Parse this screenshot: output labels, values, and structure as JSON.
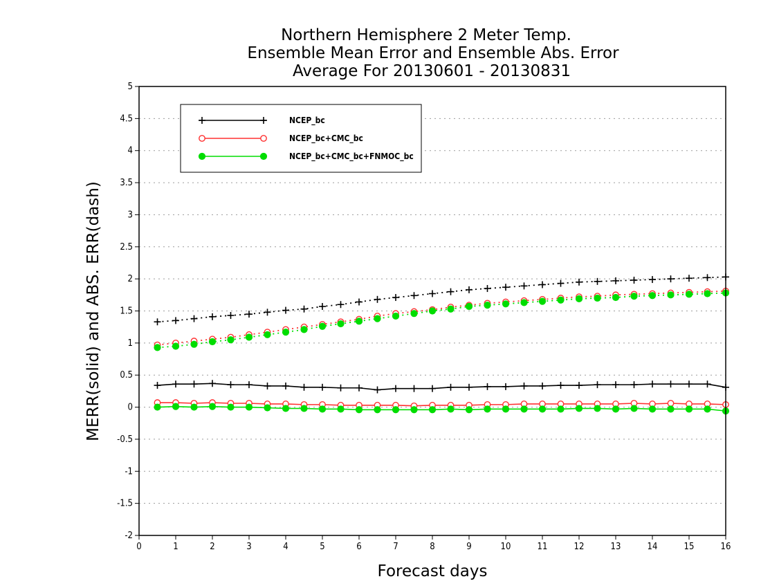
{
  "chart_data": {
    "type": "line",
    "title_lines": [
      "Northern Hemisphere 2 Meter Temp.",
      "Ensemble Mean Error and Ensemble Abs. Error",
      "Average For 20130601 - 20130831"
    ],
    "xlabel": "Forecast days",
    "ylabel": "MERR(solid) and ABS. ERR(dash)",
    "xlim": [
      0,
      16
    ],
    "ylim": [
      -2,
      5
    ],
    "x_ticks": [
      "0",
      "1",
      "2",
      "3",
      "4",
      "5",
      "6",
      "7",
      "8",
      "9",
      "10",
      "11",
      "12",
      "13",
      "14",
      "15",
      "16"
    ],
    "y_ticks": [
      "5",
      "4.5",
      "4",
      "3.5",
      "3",
      "2.5",
      "2",
      "1.5",
      "1",
      "0.5",
      "0",
      "-0.5",
      "-1",
      "-1.5",
      "-2"
    ],
    "y_tick_values": [
      5,
      4.5,
      4,
      3.5,
      3,
      2.5,
      2,
      1.5,
      1,
      0.5,
      0,
      -0.5,
      -1,
      -1.5,
      -2
    ],
    "grid": "horizontal dotted",
    "legend_position": "top-left",
    "x": [
      0.5,
      1,
      1.5,
      2,
      2.5,
      3,
      3.5,
      4,
      4.5,
      5,
      5.5,
      6,
      6.5,
      7,
      7.5,
      8,
      8.5,
      9,
      9.5,
      10,
      10.5,
      11,
      11.5,
      12,
      12.5,
      13,
      13.5,
      14,
      14.5,
      15,
      15.5,
      16
    ],
    "series": [
      {
        "name": "NCEP_bc",
        "color": "#000000",
        "marker": "plus",
        "merr": [
          0.34,
          0.36,
          0.36,
          0.37,
          0.35,
          0.35,
          0.33,
          0.33,
          0.31,
          0.31,
          0.3,
          0.3,
          0.27,
          0.29,
          0.29,
          0.29,
          0.31,
          0.31,
          0.32,
          0.32,
          0.33,
          0.33,
          0.34,
          0.34,
          0.35,
          0.35,
          0.35,
          0.36,
          0.36,
          0.36,
          0.36,
          0.31
        ],
        "abs_err": [
          1.33,
          1.35,
          1.38,
          1.41,
          1.43,
          1.45,
          1.48,
          1.51,
          1.53,
          1.57,
          1.6,
          1.64,
          1.68,
          1.71,
          1.74,
          1.77,
          1.8,
          1.83,
          1.85,
          1.87,
          1.89,
          1.91,
          1.93,
          1.95,
          1.96,
          1.97,
          1.98,
          1.99,
          2.0,
          2.01,
          2.02,
          2.03
        ]
      },
      {
        "name": "NCEP_bc+CMC_bc",
        "color": "#ff3030",
        "marker": "open-circle",
        "merr": [
          0.07,
          0.07,
          0.06,
          0.07,
          0.06,
          0.06,
          0.05,
          0.05,
          0.04,
          0.04,
          0.03,
          0.03,
          0.03,
          0.03,
          0.02,
          0.03,
          0.03,
          0.03,
          0.04,
          0.04,
          0.05,
          0.05,
          0.05,
          0.05,
          0.05,
          0.05,
          0.06,
          0.05,
          0.06,
          0.05,
          0.05,
          0.04
        ],
        "abs_err": [
          0.97,
          1.0,
          1.03,
          1.06,
          1.09,
          1.13,
          1.17,
          1.21,
          1.25,
          1.29,
          1.33,
          1.37,
          1.42,
          1.46,
          1.49,
          1.52,
          1.56,
          1.59,
          1.62,
          1.64,
          1.66,
          1.68,
          1.7,
          1.72,
          1.73,
          1.75,
          1.76,
          1.77,
          1.78,
          1.79,
          1.8,
          1.81
        ]
      },
      {
        "name": "NCEP_bc+CMC_bc+FNMOC_bc",
        "color": "#00dd00",
        "marker": "filled-circle",
        "merr": [
          0.0,
          0.01,
          0.0,
          0.01,
          0.0,
          0.0,
          -0.01,
          -0.02,
          -0.02,
          -0.03,
          -0.03,
          -0.04,
          -0.04,
          -0.04,
          -0.04,
          -0.04,
          -0.03,
          -0.04,
          -0.03,
          -0.03,
          -0.03,
          -0.03,
          -0.03,
          -0.02,
          -0.02,
          -0.03,
          -0.02,
          -0.03,
          -0.03,
          -0.03,
          -0.03,
          -0.06
        ],
        "abs_err": [
          0.93,
          0.95,
          0.98,
          1.02,
          1.05,
          1.09,
          1.13,
          1.17,
          1.21,
          1.26,
          1.3,
          1.34,
          1.38,
          1.42,
          1.46,
          1.5,
          1.53,
          1.57,
          1.59,
          1.61,
          1.63,
          1.65,
          1.67,
          1.69,
          1.7,
          1.71,
          1.73,
          1.74,
          1.75,
          1.76,
          1.77,
          1.78
        ]
      }
    ]
  }
}
